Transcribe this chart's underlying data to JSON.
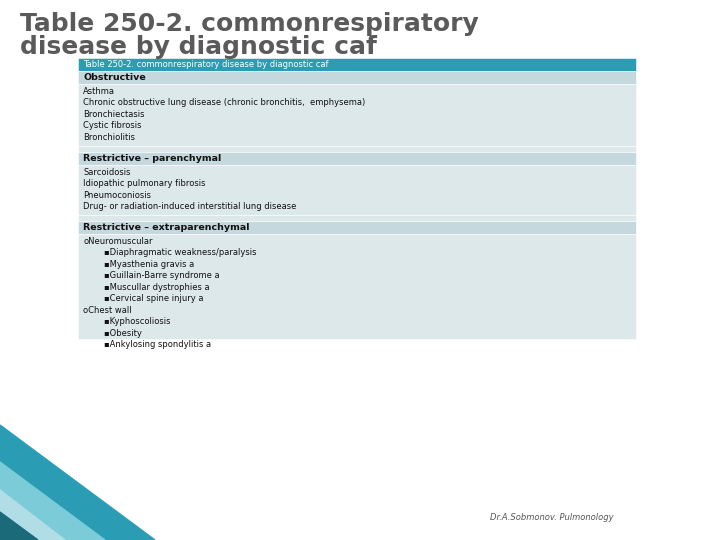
{
  "title_line1": "Table 250-2. commonrespiratory",
  "title_line2": "disease by diagnostic caf",
  "title_color": "#5a5a5a",
  "title_fontsize": 18,
  "slide_bg": "#ffffff",
  "table_header": "Table 250-2. commonrespiratory disease by diagnostic caf",
  "table_header_bg": "#2a9db5",
  "table_header_color": "#ffffff",
  "table_header_fontsize": 6.0,
  "section_bg": "#c5d8dd",
  "section_color": "#111111",
  "section_fontsize": 6.8,
  "content_bg": "#dde8eb",
  "content_color": "#111111",
  "content_fontsize": 6.0,
  "footer_text": "Dr.A.Sobmonov. Pulmonology",
  "footer_fontsize": 6.0,
  "decorator_dark": "#1a6a7a",
  "decorator_teal": "#2a9db5",
  "decorator_light": "#7bccd8",
  "decorator_pale": "#b0dde6"
}
